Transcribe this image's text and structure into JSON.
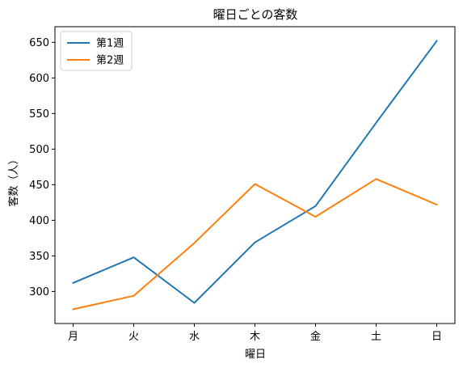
{
  "chart_data": {
    "type": "line",
    "title": "曜日ごとの客数",
    "xlabel": "曜日",
    "ylabel": "客数（人）",
    "categories": [
      "月",
      "火",
      "水",
      "木",
      "金",
      "土",
      "日"
    ],
    "series": [
      {
        "name": "第1週",
        "color": "#1f77b4",
        "values": [
          312,
          348,
          284,
          369,
          420,
          537,
          652
        ]
      },
      {
        "name": "第2週",
        "color": "#ff7f0e",
        "values": [
          275,
          294,
          368,
          451,
          405,
          458,
          422
        ]
      }
    ],
    "ylim": [
      255,
      672
    ],
    "yticks": [
      300,
      350,
      400,
      450,
      500,
      550,
      600,
      650
    ],
    "grid": false,
    "legend": "upper left"
  }
}
